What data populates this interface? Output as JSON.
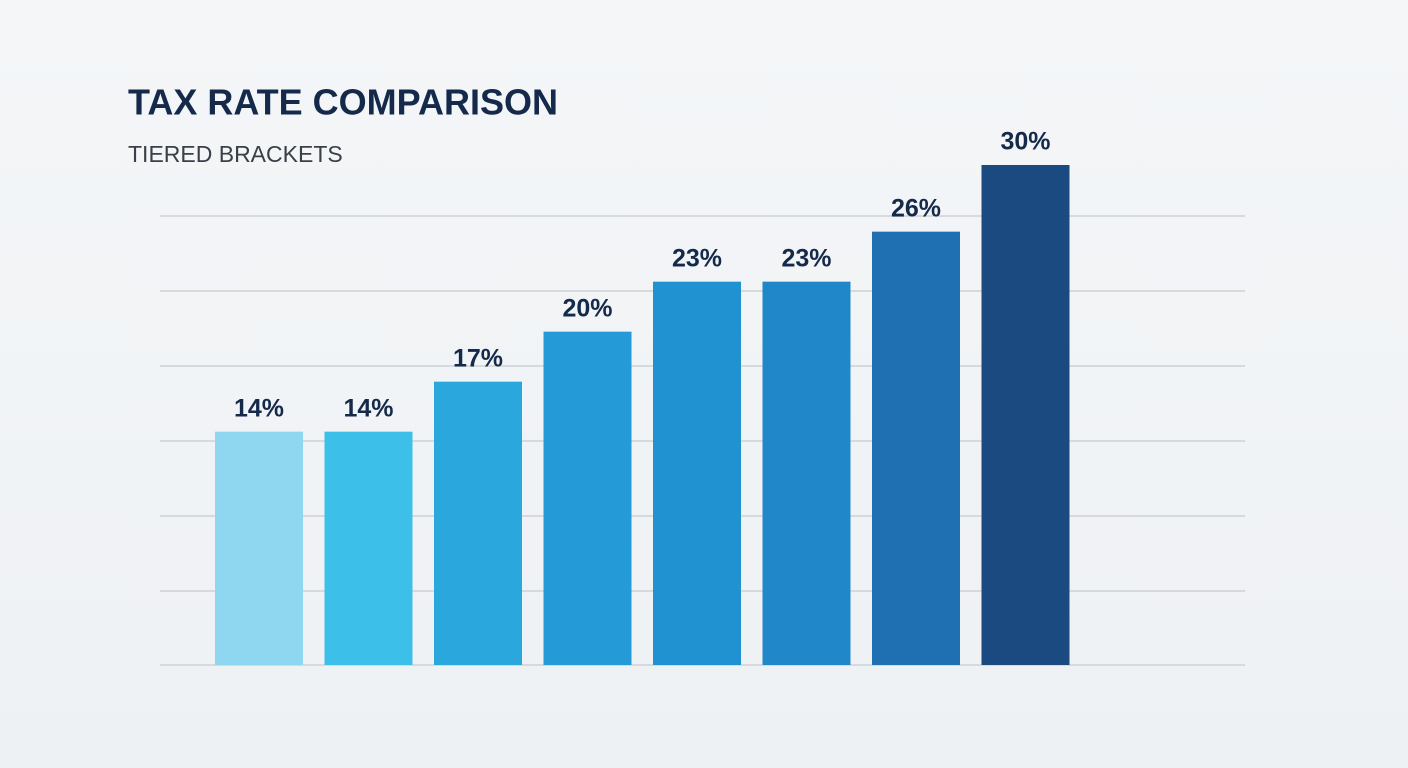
{
  "chart_data": {
    "type": "bar",
    "title": "TAX RATE COMPARISON",
    "subtitle": "TIERED BRACKETS",
    "values": [
      14,
      14,
      17,
      20,
      23,
      23,
      26,
      30
    ],
    "value_labels": [
      "14%",
      "14%",
      "17%",
      "20%",
      "23%",
      "23%",
      "26%",
      "30%"
    ],
    "colors": [
      "#8fd6f0",
      "#3cc0ea",
      "#2aa7dd",
      "#249bd7",
      "#2192d1",
      "#2087c8",
      "#1f70b2",
      "#1a4a80"
    ]
  }
}
